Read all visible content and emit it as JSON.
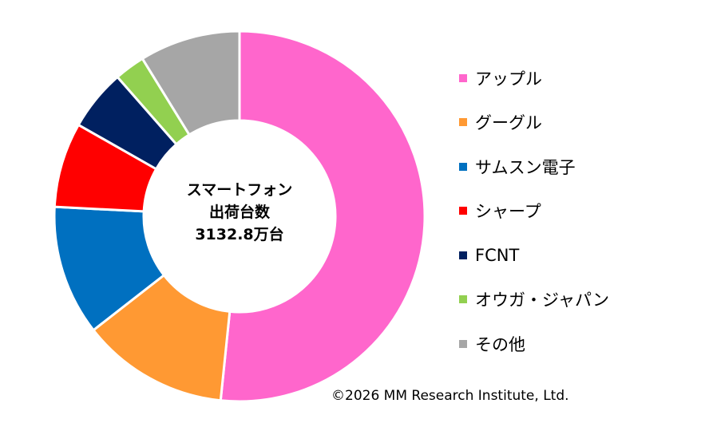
{
  "chart_data": {
    "type": "pie",
    "variant": "donut",
    "center_text": [
      "スマートフォン",
      "出荷台数",
      "3132.8万台"
    ],
    "categories": [
      "アップル",
      "グーグル",
      "サムスン電子",
      "シャープ",
      "FCNT",
      "オウガ・ジャパン",
      "その他"
    ],
    "values": [
      52.3,
      13.0,
      11.5,
      7.5,
      5.4,
      2.7,
      8.9
    ],
    "unit": "%",
    "colors": [
      "#FF66CC",
      "#FF9933",
      "#0070C0",
      "#FF0000",
      "#002060",
      "#92D050",
      "#A6A6A6"
    ],
    "start_angle": "12 o'clock",
    "direction": "clockwise",
    "legend_position": "right"
  },
  "copyright": "©2026 MM Research Institute, Ltd."
}
